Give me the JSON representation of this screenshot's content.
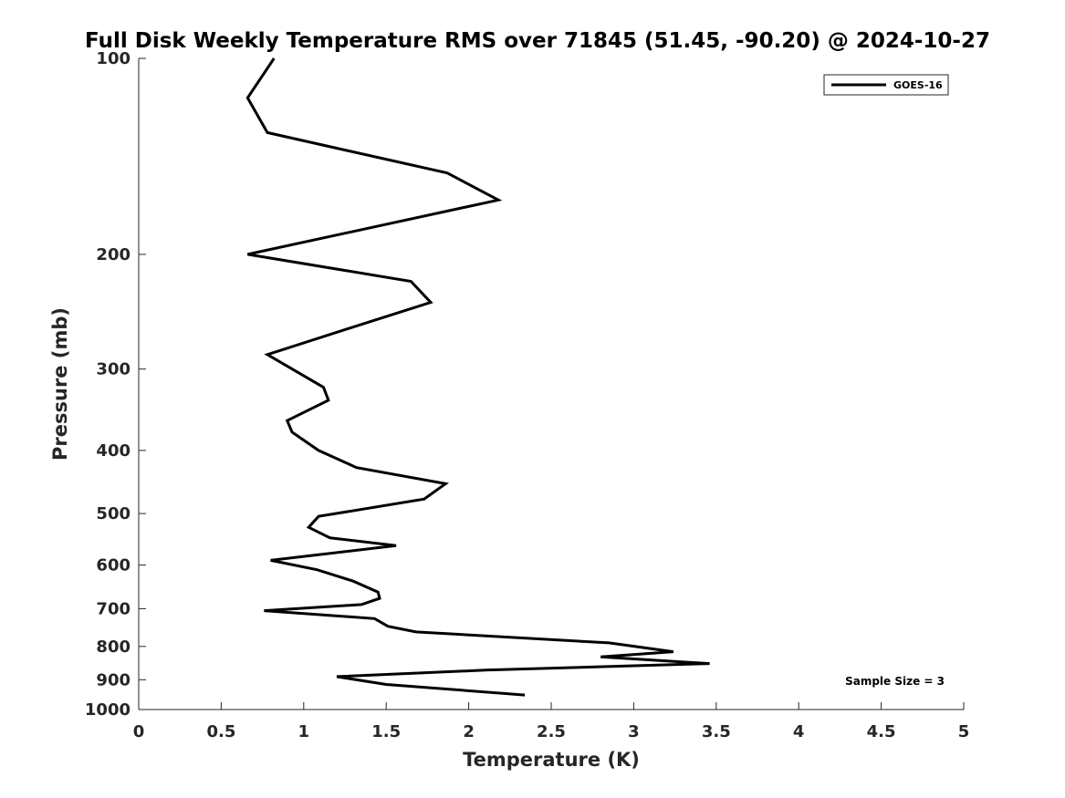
{
  "chart_data": {
    "type": "line",
    "title": "Full Disk Weekly Temperature RMS over 71845 (51.45, -90.20) @ 2024-10-27",
    "xlabel": "Temperature (K)",
    "ylabel": "Pressure (mb)",
    "xlim": [
      0,
      5
    ],
    "ylim": [
      100,
      1000
    ],
    "y_scale": "log",
    "y_reversed": true,
    "x_ticks": [
      "0",
      "0.5",
      "1",
      "1.5",
      "2",
      "2.5",
      "3",
      "3.5",
      "4",
      "4.5",
      "5"
    ],
    "x_tick_values": [
      0,
      0.5,
      1,
      1.5,
      2,
      2.5,
      3,
      3.5,
      4,
      4.5,
      5
    ],
    "y_ticks": [
      "100",
      "200",
      "300",
      "400",
      "500",
      "600",
      "700",
      "800",
      "900",
      "1000"
    ],
    "y_tick_values": [
      100,
      200,
      300,
      400,
      500,
      600,
      700,
      800,
      900,
      1000
    ],
    "grid": false,
    "legend_position": "top-right",
    "annotation": "Sample Size = 3",
    "line_color": "#000000",
    "series": [
      {
        "name": "GOES-16",
        "x": [
          0.82,
          0.66,
          0.78,
          1.87,
          2.18,
          0.66,
          1.65,
          1.77,
          1.27,
          0.78,
          1.12,
          1.15,
          0.9,
          0.93,
          1.09,
          1.32,
          1.86,
          1.73,
          1.09,
          1.03,
          1.16,
          1.56,
          0.8,
          1.08,
          1.3,
          1.45,
          1.46,
          1.35,
          0.76,
          1.43,
          1.51,
          1.68,
          2.85,
          3.24,
          2.8,
          3.46,
          2.1,
          1.2,
          1.5,
          2.34
        ],
        "y": [
          100,
          115,
          130,
          150,
          165,
          200,
          220,
          237,
          260,
          285,
          320,
          335,
          360,
          375,
          400,
          425,
          450,
          475,
          505,
          525,
          545,
          560,
          590,
          610,
          635,
          660,
          675,
          690,
          705,
          725,
          745,
          760,
          790,
          815,
          830,
          850,
          870,
          890,
          915,
          950
        ]
      }
    ]
  }
}
